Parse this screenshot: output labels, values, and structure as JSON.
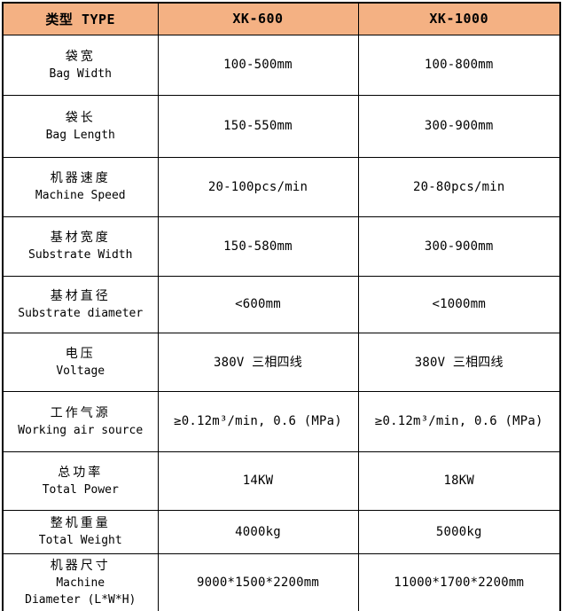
{
  "colors": {
    "header_bg": "#F4B183",
    "border": "#000000",
    "text": "#000000",
    "background": "#FFFFFF"
  },
  "table": {
    "header": {
      "type": "类型 TYPE",
      "xk600": "XK-600",
      "xk1000": "XK-1000"
    },
    "rows": [
      {
        "zh": "袋宽",
        "en": "Bag Width",
        "xk600": "100-500mm",
        "xk1000": "100-800mm"
      },
      {
        "zh": "袋长",
        "en": "Bag Length",
        "xk600": "150-550mm",
        "xk1000": "300-900mm"
      },
      {
        "zh": "机器速度",
        "en": "Machine Speed",
        "xk600": "20-100pcs/min",
        "xk1000": "20-80pcs/min"
      },
      {
        "zh": "基材宽度",
        "en": "Substrate Width",
        "xk600": "150-580mm",
        "xk1000": "300-900mm"
      },
      {
        "zh": "基材直径",
        "en": "Substrate diameter",
        "xk600": "<600mm",
        "xk1000": "<1000mm"
      },
      {
        "zh": "电压",
        "en": "Voltage",
        "xk600": "380V 三相四线",
        "xk1000": "380V 三相四线"
      },
      {
        "zh": "工作气源",
        "en": "Working air source",
        "xk600": "≥0.12m³/min, 0.6 (MPa)",
        "xk1000": "≥0.12m³/min, 0.6 (MPa)"
      },
      {
        "zh": "总功率",
        "en": "Total Power",
        "xk600": "14KW",
        "xk1000": "18KW"
      },
      {
        "zh": "整机重量",
        "en": "Total Weight",
        "xk600": "4000kg",
        "xk1000": "5000kg"
      },
      {
        "zh": "机器尺寸",
        "en": "Machine\nDiameter (L*W*H)",
        "xk600": "9000*1500*2200mm",
        "xk1000": "11000*1700*2200mm"
      }
    ]
  }
}
